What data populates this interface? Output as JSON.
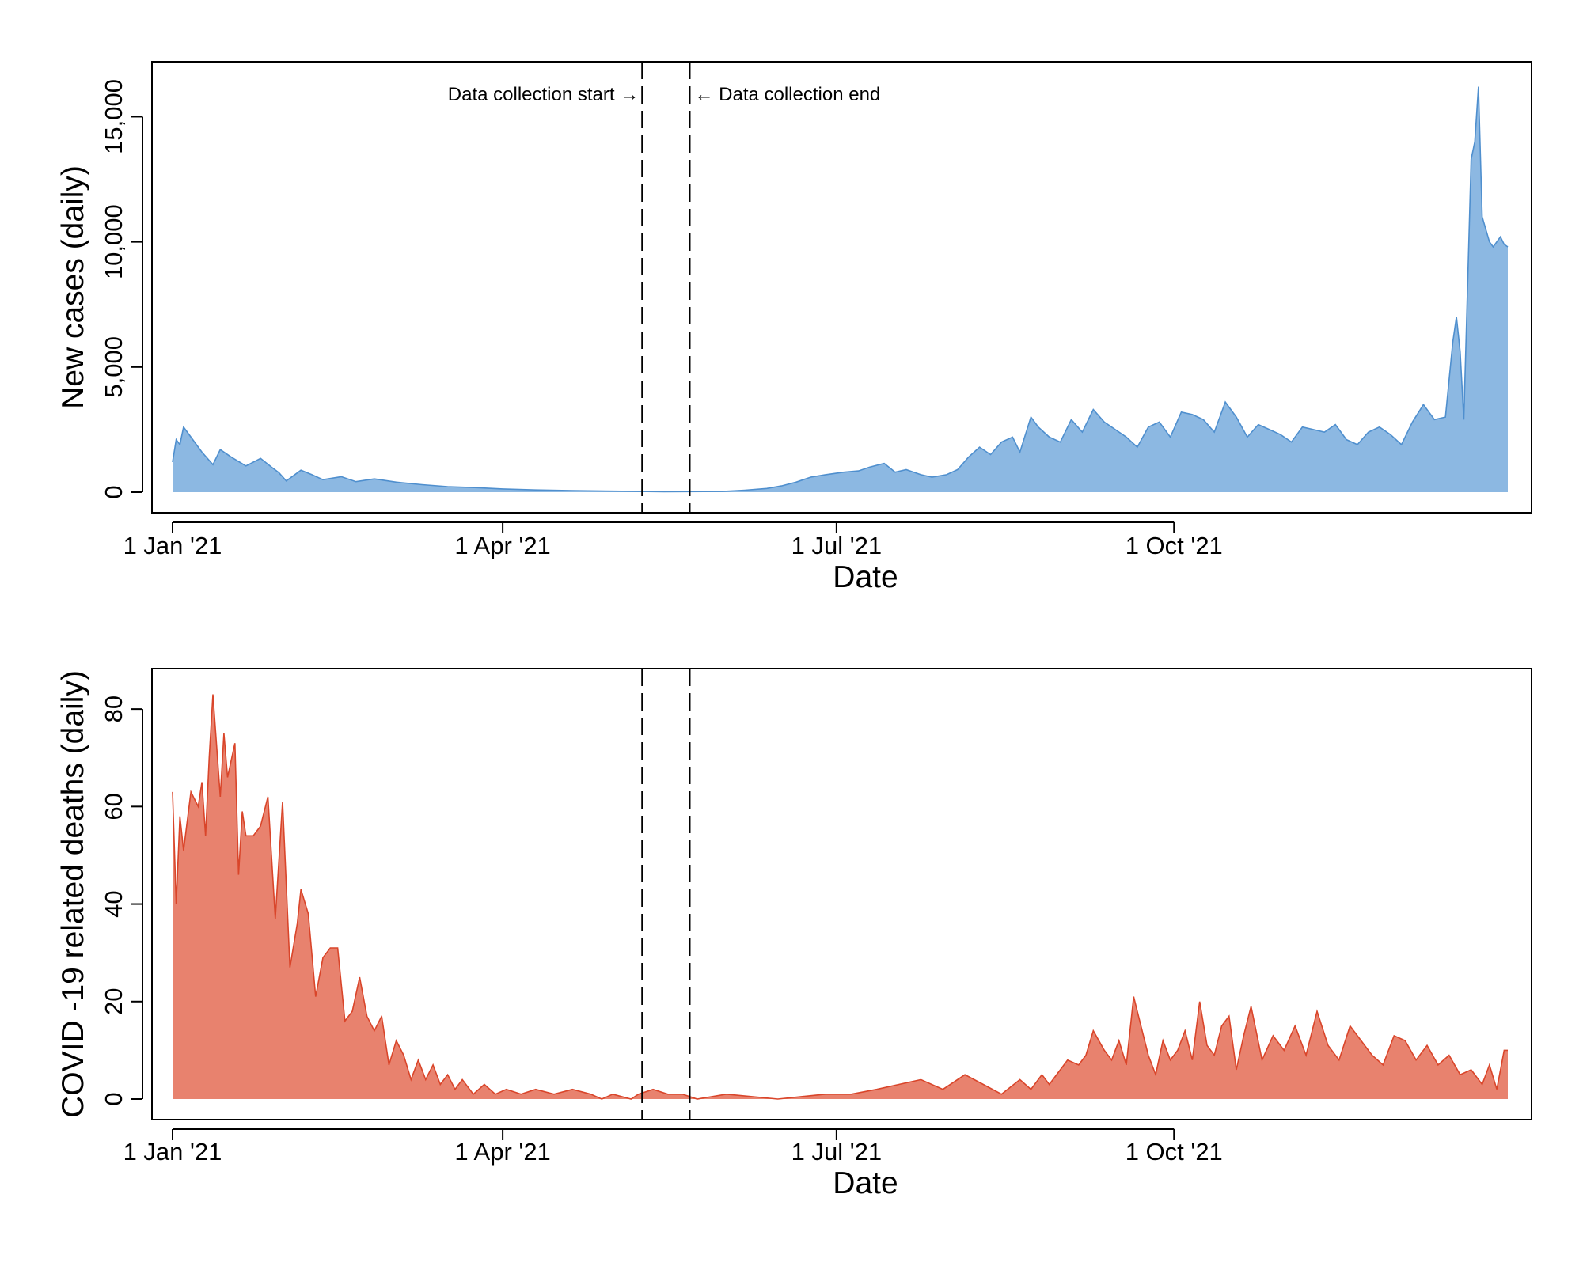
{
  "chart_data": [
    {
      "type": "area",
      "color": "#8cb8e2",
      "stroke_color": "#4f8fce",
      "xlabel": "Date",
      "ylabel": "New cases (daily)",
      "xlim": [
        "2021-01-01",
        "2021-12-31"
      ],
      "ylim": [
        0,
        16500
      ],
      "x_ticks": [
        "2021-01-01",
        "2021-04-01",
        "2021-07-01",
        "2021-10-01"
      ],
      "x_tick_labels": [
        "1 Jan '21",
        "1 Apr '21",
        "1 Jul '21",
        "1 Oct '21"
      ],
      "y_ticks": [
        0,
        5000,
        10000,
        15000
      ],
      "y_tick_labels": [
        "0",
        "5,000",
        "10,000",
        "15,000"
      ],
      "reference_lines": [
        {
          "x": "2021-05-09",
          "label": "Data collection start →",
          "label_side": "left"
        },
        {
          "x": "2021-05-22",
          "label": "← Data collection end",
          "label_side": "right"
        }
      ],
      "series": [
        {
          "x": [
            "2021-01-01",
            "2021-01-02",
            "2021-01-03",
            "2021-01-04",
            "2021-01-06",
            "2021-01-09",
            "2021-01-12",
            "2021-01-14",
            "2021-01-17",
            "2021-01-21",
            "2021-01-25",
            "2021-01-28",
            "2021-01-30",
            "2021-02-01",
            "2021-02-05",
            "2021-02-08",
            "2021-02-11",
            "2021-02-16",
            "2021-02-20",
            "2021-02-25",
            "2021-03-03",
            "2021-03-10",
            "2021-03-17",
            "2021-03-25",
            "2021-04-01",
            "2021-04-10",
            "2021-04-20",
            "2021-05-01",
            "2021-05-15",
            "2021-05-31",
            "2021-06-06",
            "2021-06-12",
            "2021-06-16",
            "2021-06-20",
            "2021-06-24",
            "2021-06-28",
            "2021-07-03",
            "2021-07-07",
            "2021-07-10",
            "2021-07-14",
            "2021-07-17",
            "2021-07-20",
            "2021-07-24",
            "2021-07-27",
            "2021-07-31",
            "2021-08-03",
            "2021-08-06",
            "2021-08-09",
            "2021-08-12",
            "2021-08-15",
            "2021-08-18",
            "2021-08-20",
            "2021-08-23",
            "2021-08-25",
            "2021-08-28",
            "2021-08-31",
            "2021-09-03",
            "2021-09-06",
            "2021-09-09",
            "2021-09-12",
            "2021-09-15",
            "2021-09-18",
            "2021-09-21",
            "2021-09-24",
            "2021-09-27",
            "2021-09-30",
            "2021-10-03",
            "2021-10-06",
            "2021-10-09",
            "2021-10-12",
            "2021-10-15",
            "2021-10-18",
            "2021-10-21",
            "2021-10-24",
            "2021-10-27",
            "2021-10-30",
            "2021-11-02",
            "2021-11-05",
            "2021-11-08",
            "2021-11-11",
            "2021-11-14",
            "2021-11-17",
            "2021-11-20",
            "2021-11-23",
            "2021-11-26",
            "2021-11-29",
            "2021-12-02",
            "2021-12-05",
            "2021-12-08",
            "2021-12-11",
            "2021-12-14",
            "2021-12-16",
            "2021-12-17",
            "2021-12-18",
            "2021-12-19",
            "2021-12-21",
            "2021-12-22",
            "2021-12-23",
            "2021-12-24",
            "2021-12-26",
            "2021-12-27",
            "2021-12-29",
            "2021-12-30",
            "2021-12-31"
          ],
          "y": [
            1200,
            2100,
            1900,
            2600,
            2200,
            1600,
            1100,
            1700,
            1400,
            1050,
            1350,
            1000,
            780,
            450,
            880,
            700,
            500,
            620,
            420,
            530,
            400,
            300,
            220,
            180,
            130,
            90,
            60,
            40,
            20,
            30,
            80,
            150,
            250,
            400,
            600,
            700,
            800,
            850,
            1000,
            1150,
            800,
            900,
            700,
            600,
            700,
            900,
            1400,
            1800,
            1500,
            2000,
            2200,
            1600,
            3000,
            2600,
            2200,
            2000,
            2900,
            2400,
            3300,
            2800,
            2500,
            2200,
            1800,
            2600,
            2800,
            2200,
            3200,
            3100,
            2900,
            2400,
            3600,
            3000,
            2200,
            2700,
            2500,
            2300,
            2000,
            2600,
            2500,
            2400,
            2700,
            2100,
            1900,
            2400,
            2600,
            2300,
            1900,
            2800,
            3500,
            2900,
            3000,
            6000,
            7000,
            5600,
            2900,
            13300,
            14000,
            16200,
            11000,
            10000,
            9800,
            10200,
            9900,
            9800
          ]
        }
      ]
    },
    {
      "type": "area",
      "color": "#e8826e",
      "stroke_color": "#d9452a",
      "xlabel": "Date",
      "ylabel": "COVID -19 related deaths (daily)",
      "xlim": [
        "2021-01-01",
        "2021-12-31"
      ],
      "ylim": [
        0,
        87
      ],
      "x_ticks": [
        "2021-01-01",
        "2021-04-01",
        "2021-07-01",
        "2021-10-01"
      ],
      "x_tick_labels": [
        "1 Jan '21",
        "1 Apr '21",
        "1 Jul '21",
        "1 Oct '21"
      ],
      "y_ticks": [
        0,
        20,
        40,
        60,
        80
      ],
      "y_tick_labels": [
        "0",
        "20",
        "40",
        "60",
        "80"
      ],
      "reference_lines": [
        {
          "x": "2021-05-09"
        },
        {
          "x": "2021-05-22"
        }
      ],
      "series": [
        {
          "x": [
            "2021-01-01",
            "2021-01-02",
            "2021-01-03",
            "2021-01-04",
            "2021-01-06",
            "2021-01-08",
            "2021-01-09",
            "2021-01-10",
            "2021-01-11",
            "2021-01-12",
            "2021-01-14",
            "2021-01-15",
            "2021-01-16",
            "2021-01-18",
            "2021-01-19",
            "2021-01-20",
            "2021-01-21",
            "2021-01-23",
            "2021-01-25",
            "2021-01-27",
            "2021-01-29",
            "2021-01-31",
            "2021-02-02",
            "2021-02-04",
            "2021-02-05",
            "2021-02-07",
            "2021-02-09",
            "2021-02-11",
            "2021-02-13",
            "2021-02-15",
            "2021-02-17",
            "2021-02-19",
            "2021-02-21",
            "2021-02-23",
            "2021-02-25",
            "2021-02-27",
            "2021-03-01",
            "2021-03-03",
            "2021-03-05",
            "2021-03-07",
            "2021-03-09",
            "2021-03-11",
            "2021-03-13",
            "2021-03-15",
            "2021-03-17",
            "2021-03-19",
            "2021-03-21",
            "2021-03-24",
            "2021-03-27",
            "2021-03-30",
            "2021-04-02",
            "2021-04-06",
            "2021-04-10",
            "2021-04-15",
            "2021-04-20",
            "2021-04-25",
            "2021-04-28",
            "2021-05-01",
            "2021-05-06",
            "2021-05-08",
            "2021-05-12",
            "2021-05-16",
            "2021-05-20",
            "2021-05-24",
            "2021-06-01",
            "2021-06-15",
            "2021-06-28",
            "2021-07-05",
            "2021-07-12",
            "2021-07-18",
            "2021-07-24",
            "2021-07-30",
            "2021-08-05",
            "2021-08-10",
            "2021-08-15",
            "2021-08-20",
            "2021-08-23",
            "2021-08-26",
            "2021-08-28",
            "2021-08-31",
            "2021-09-02",
            "2021-09-05",
            "2021-09-07",
            "2021-09-09",
            "2021-09-12",
            "2021-09-14",
            "2021-09-16",
            "2021-09-18",
            "2021-09-20",
            "2021-09-22",
            "2021-09-24",
            "2021-09-26",
            "2021-09-28",
            "2021-09-30",
            "2021-10-02",
            "2021-10-04",
            "2021-10-06",
            "2021-10-08",
            "2021-10-10",
            "2021-10-12",
            "2021-10-14",
            "2021-10-16",
            "2021-10-18",
            "2021-10-20",
            "2021-10-22",
            "2021-10-25",
            "2021-10-28",
            "2021-10-31",
            "2021-11-03",
            "2021-11-06",
            "2021-11-09",
            "2021-11-12",
            "2021-11-15",
            "2021-11-18",
            "2021-11-21",
            "2021-11-24",
            "2021-11-27",
            "2021-11-30",
            "2021-12-03",
            "2021-12-06",
            "2021-12-09",
            "2021-12-12",
            "2021-12-15",
            "2021-12-18",
            "2021-12-21",
            "2021-12-24",
            "2021-12-26",
            "2021-12-28",
            "2021-12-30",
            "2021-12-31"
          ],
          "y": [
            63,
            40,
            58,
            51,
            63,
            60,
            65,
            54,
            70,
            83,
            62,
            75,
            66,
            73,
            46,
            59,
            54,
            54,
            56,
            62,
            37,
            61,
            27,
            36,
            43,
            38,
            21,
            29,
            31,
            31,
            16,
            18,
            25,
            17,
            14,
            17,
            7,
            12,
            9,
            4,
            8,
            4,
            7,
            3,
            5,
            2,
            4,
            1,
            3,
            1,
            2,
            1,
            2,
            1,
            2,
            1,
            0,
            1,
            0,
            1,
            2,
            1,
            1,
            0,
            1,
            0,
            1,
            1,
            2,
            3,
            4,
            2,
            5,
            3,
            1,
            4,
            2,
            5,
            3,
            6,
            8,
            7,
            9,
            14,
            10,
            8,
            12,
            7,
            21,
            15,
            9,
            5,
            12,
            8,
            10,
            14,
            8,
            20,
            11,
            9,
            15,
            17,
            6,
            13,
            19,
            8,
            13,
            10,
            15,
            9,
            18,
            11,
            8,
            15,
            12,
            9,
            7,
            13,
            12,
            8,
            11,
            7,
            9,
            5,
            6,
            3,
            7,
            2,
            10,
            10
          ]
        }
      ]
    }
  ]
}
